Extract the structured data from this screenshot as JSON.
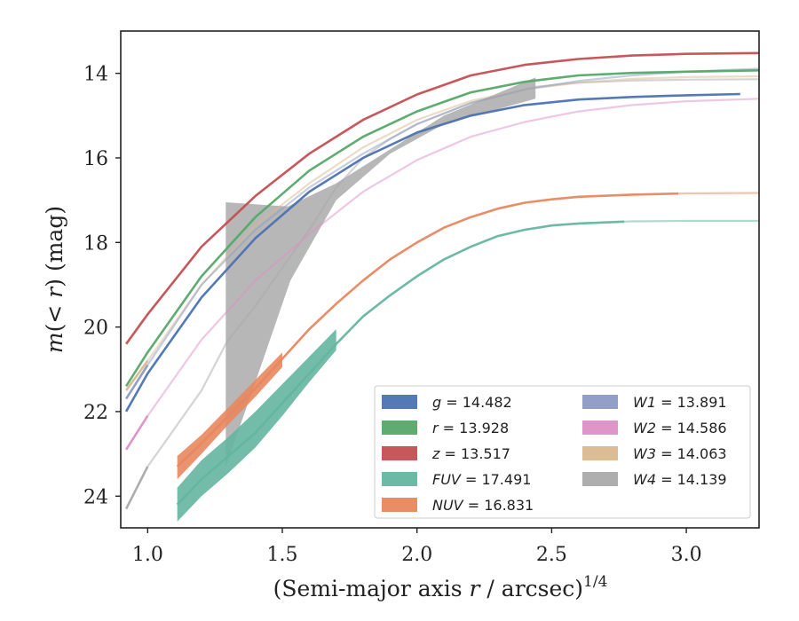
{
  "chart_data": {
    "type": "line",
    "xlabel_parts": [
      "(Semi-major axis ",
      "r",
      " / arcsec)",
      "1/4"
    ],
    "ylabel_parts": [
      "m",
      "(< ",
      "r",
      ") (mag)"
    ],
    "xlim": [
      0.9,
      3.27
    ],
    "ylim": [
      24.75,
      13.0
    ],
    "y_inverted": true,
    "xticks": [
      1.0,
      1.5,
      2.0,
      2.5,
      3.0
    ],
    "xtick_labels": [
      "1.0",
      "1.5",
      "2.0",
      "2.5",
      "3.0"
    ],
    "yticks": [
      14,
      16,
      18,
      20,
      22,
      24
    ],
    "ytick_labels": [
      "14",
      "16",
      "18",
      "20",
      "22",
      "24"
    ],
    "legend_position": "lower-right",
    "series": [
      {
        "name": "g = 14.482",
        "color": "#4c72b0",
        "x": [
          0.92,
          1.0,
          1.2,
          1.4,
          1.6,
          1.8,
          2.0,
          2.2,
          2.4,
          2.6,
          2.8,
          3.0,
          3.2
        ],
        "y": [
          22.0,
          21.1,
          19.3,
          17.9,
          16.8,
          16.0,
          15.4,
          15.0,
          14.75,
          14.62,
          14.56,
          14.52,
          14.49
        ],
        "solid_until": 3.2
      },
      {
        "name": "r = 13.928",
        "color": "#55a868",
        "x": [
          0.92,
          1.0,
          1.2,
          1.4,
          1.6,
          1.8,
          2.0,
          2.2,
          2.4,
          2.6,
          2.8,
          3.0,
          3.27
        ],
        "y": [
          21.4,
          20.6,
          18.8,
          17.4,
          16.3,
          15.5,
          14.9,
          14.45,
          14.2,
          14.05,
          13.99,
          13.96,
          13.93
        ],
        "solid_until": 3.27
      },
      {
        "name": "z = 13.517",
        "color": "#c44e52",
        "x": [
          0.92,
          1.0,
          1.2,
          1.4,
          1.6,
          1.8,
          2.0,
          2.2,
          2.4,
          2.6,
          2.8,
          3.0,
          3.27
        ],
        "y": [
          20.4,
          19.7,
          18.1,
          16.9,
          15.9,
          15.1,
          14.5,
          14.05,
          13.8,
          13.66,
          13.58,
          13.54,
          13.52
        ],
        "solid_until": 3.27
      },
      {
        "name": "FUV = 17.491",
        "color": "#64b5a0",
        "x": [
          1.11,
          1.2,
          1.3,
          1.4,
          1.5,
          1.6,
          1.7,
          1.8,
          1.9,
          2.0,
          2.1,
          2.2,
          2.3,
          2.4,
          2.5,
          2.6,
          2.8,
          3.0,
          3.27
        ],
        "y": [
          24.2,
          23.6,
          23.05,
          22.5,
          21.8,
          21.1,
          20.4,
          19.75,
          19.25,
          18.8,
          18.4,
          18.1,
          17.85,
          17.7,
          17.6,
          17.55,
          17.5,
          17.49,
          17.49
        ],
        "solid_until": 2.77
      },
      {
        "name": "NUV = 16.831",
        "color": "#e8875f",
        "x": [
          1.11,
          1.2,
          1.3,
          1.4,
          1.5,
          1.6,
          1.7,
          1.8,
          1.9,
          2.0,
          2.1,
          2.2,
          2.3,
          2.4,
          2.5,
          2.6,
          2.8,
          3.0,
          3.27
        ],
        "y": [
          23.3,
          22.75,
          22.1,
          21.45,
          20.75,
          20.05,
          19.45,
          18.9,
          18.4,
          18.0,
          17.65,
          17.4,
          17.2,
          17.06,
          16.98,
          16.92,
          16.87,
          16.84,
          16.83
        ],
        "solid_until": 2.97
      },
      {
        "name": "W1 = 13.891",
        "color": "#8c9bc4",
        "x": [
          0.92,
          1.0,
          1.2,
          1.4,
          1.6,
          1.8,
          2.0,
          2.2,
          2.4,
          2.6,
          2.8,
          3.0,
          3.27
        ],
        "y": [
          21.7,
          20.9,
          19.0,
          17.7,
          16.7,
          15.9,
          15.2,
          14.7,
          14.38,
          14.18,
          14.05,
          13.96,
          13.89
        ],
        "solid_until": 1.0
      },
      {
        "name": "W2 = 14.586",
        "color": "#dd8fc6",
        "x": [
          0.92,
          1.0,
          1.2,
          1.4,
          1.6,
          1.8,
          2.0,
          2.2,
          2.4,
          2.6,
          2.8,
          3.0,
          3.27
        ],
        "y": [
          22.9,
          22.1,
          20.3,
          18.9,
          17.8,
          16.8,
          16.05,
          15.5,
          15.15,
          14.9,
          14.75,
          14.66,
          14.6
        ],
        "solid_until": 1.0
      },
      {
        "name": "W3 = 14.063",
        "color": "#d9b88f",
        "x": [
          0.92,
          1.0,
          1.2,
          1.4,
          1.6,
          1.8,
          2.0,
          2.2,
          2.4,
          2.6,
          2.8,
          3.0,
          3.27
        ],
        "y": [
          21.5,
          20.8,
          19.0,
          17.6,
          16.6,
          15.75,
          15.1,
          14.65,
          14.38,
          14.22,
          14.13,
          14.09,
          14.07
        ],
        "solid_until": 1.0
      },
      {
        "name": "W4 = 14.139",
        "color": "#aaaaaa",
        "x": [
          0.92,
          1.0,
          1.1,
          1.2,
          1.29,
          1.3,
          1.4,
          1.5,
          1.6,
          1.7,
          1.8,
          1.9,
          2.0,
          2.2,
          2.44,
          2.6,
          2.8,
          3.0,
          3.27
        ],
        "y": [
          24.3,
          23.3,
          22.4,
          21.5,
          20.4,
          20.3,
          19.5,
          18.6,
          17.7,
          16.7,
          16.0,
          15.55,
          15.2,
          14.7,
          14.32,
          14.22,
          14.17,
          14.15,
          14.14
        ],
        "solid_until": 1.0
      }
    ],
    "legend": [
      {
        "label_italic": "g",
        "label_value": " = 14.482",
        "color": "#4c72b0"
      },
      {
        "label_italic": "r",
        "label_value": " = 13.928",
        "color": "#55a868"
      },
      {
        "label_italic": "z",
        "label_value": " = 13.517",
        "color": "#c44e52"
      },
      {
        "label_italic": "FUV",
        "label_value": " = 17.491",
        "color": "#64b5a0"
      },
      {
        "label_italic": "NUV",
        "label_value": " = 16.831",
        "color": "#e8875f"
      },
      {
        "label_italic": "W1",
        "label_value": " = 13.891",
        "color": "#8c9bc4"
      },
      {
        "label_italic": "W2",
        "label_value": " = 14.586",
        "color": "#dd8fc6"
      },
      {
        "label_italic": "W3",
        "label_value": " = 14.063",
        "color": "#d9b88f"
      },
      {
        "label_italic": "W4",
        "label_value": " = 14.139",
        "color": "#aaaaaa"
      }
    ],
    "bands": [
      {
        "series": "W4",
        "color": "#aaaaaa",
        "upper": {
          "x": [
            1.29,
            1.52,
            1.7,
            1.9,
            2.1,
            2.44
          ],
          "y": [
            17.05,
            17.15,
            16.6,
            15.8,
            15.0,
            14.1
          ]
        },
        "lower": {
          "x": [
            1.29,
            1.4,
            1.53,
            1.7,
            1.9,
            2.1,
            2.44
          ],
          "y": [
            23.3,
            21.3,
            18.9,
            17.0,
            15.9,
            15.2,
            14.6
          ]
        }
      },
      {
        "series": "FUV",
        "color": "#64b5a0",
        "upper": {
          "x": [
            1.11,
            1.2,
            1.3,
            1.4,
            1.5,
            1.6,
            1.7
          ],
          "y": [
            23.8,
            23.15,
            22.6,
            22.0,
            21.35,
            20.7,
            20.05
          ]
        },
        "lower": {
          "x": [
            1.11,
            1.2,
            1.3,
            1.4,
            1.5,
            1.6,
            1.7
          ],
          "y": [
            24.6,
            24.0,
            23.45,
            22.85,
            22.1,
            21.3,
            20.55
          ]
        }
      },
      {
        "series": "NUV",
        "color": "#e8875f",
        "upper": {
          "x": [
            1.11,
            1.2,
            1.3,
            1.4,
            1.5
          ],
          "y": [
            23.05,
            22.55,
            21.9,
            21.25,
            20.6
          ]
        },
        "lower": {
          "x": [
            1.11,
            1.2,
            1.3,
            1.4,
            1.5
          ],
          "y": [
            23.6,
            23.0,
            22.3,
            21.65,
            20.95
          ]
        }
      }
    ]
  }
}
